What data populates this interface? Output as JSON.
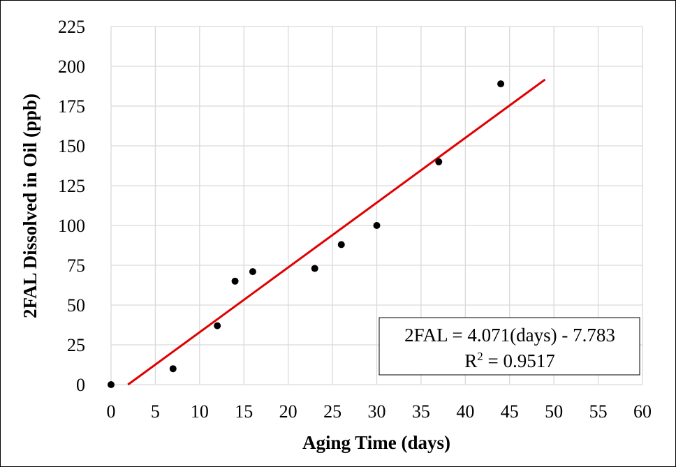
{
  "chart_data": {
    "type": "scatter",
    "title": "",
    "xlabel": "Aging Time (days)",
    "ylabel": "2FAL Dissolved in Oil (ppb)",
    "xlim": [
      0,
      60
    ],
    "ylim": [
      0,
      225
    ],
    "xticks": [
      0,
      5,
      10,
      15,
      20,
      25,
      30,
      35,
      40,
      45,
      50,
      55,
      60
    ],
    "yticks": [
      0,
      25,
      50,
      75,
      100,
      125,
      150,
      175,
      200,
      225
    ],
    "grid": true,
    "series": [
      {
        "x": [
          0,
          7,
          12,
          14,
          16,
          23,
          26,
          30,
          37,
          44
        ],
        "y": [
          0,
          10,
          37,
          65,
          71,
          73,
          88,
          100,
          140,
          189
        ],
        "color": "#000000"
      }
    ],
    "trendline": {
      "slope": 4.071,
      "intercept": -7.783,
      "x_range": [
        0,
        49
      ],
      "color": "#e00000"
    },
    "annotation": {
      "equation": "2FAL = 4.071(days) - 7.783",
      "r2_prefix": "R",
      "r2_sup": "2",
      "r2_value": " = 0.9517"
    }
  }
}
